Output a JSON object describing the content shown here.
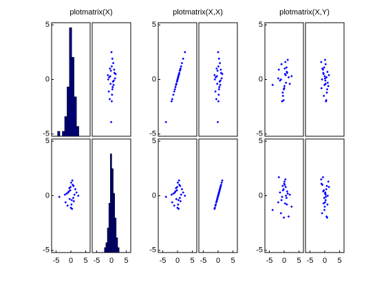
{
  "chart_data": [
    {
      "type": "scatter",
      "title": "plotmatrix(X)",
      "xlim": [
        -6.5,
        6.5
      ],
      "xticks": [
        -5,
        0,
        5
      ],
      "ylim": [
        -5.2,
        5.2
      ],
      "yticks": [
        -5,
        0,
        5
      ],
      "color": "#0000ff",
      "panels": [
        {
          "type": "histogram",
          "bins": [
            -4.5,
            -3.7,
            -2.9,
            -2.1,
            -1.3,
            -0.5,
            0.3,
            1.1,
            1.9,
            2.7
          ],
          "counts": [
            1,
            0,
            1,
            4,
            10,
            22,
            16,
            8,
            2
          ],
          "ylim": [
            0,
            23
          ],
          "color": "#000080"
        },
        {
          "type": "scatter",
          "x": [
            -0.4,
            0.7,
            0.1,
            -0.9,
            1.2,
            -0.2,
            0.5,
            0.0,
            -0.6,
            1.0,
            0.3,
            -1.1,
            0.6,
            -0.3,
            0.9,
            0.2,
            -0.8,
            -0.1,
            1.4,
            0.4,
            -0.5,
            0.8,
            -1.2,
            0.1,
            0.3
          ],
          "y": [
            0.3,
            -0.5,
            1.2,
            -1.1,
            0.1,
            0.8,
            -0.2,
            2.5,
            -1.8,
            0.6,
            -0.9,
            0.0,
            1.5,
            -0.4,
            0.9,
            -1.4,
            0.2,
            -3.9,
            0.5,
            -0.7,
            1.0,
            -0.1,
            0.4,
            -2.0,
            1.9
          ]
        },
        {
          "type": "scatter",
          "x": [
            0.3,
            -0.5,
            1.2,
            -1.1,
            0.1,
            0.8,
            -0.2,
            2.5,
            -1.8,
            0.6,
            -0.9,
            0.0,
            1.5,
            -0.4,
            0.9,
            -1.4,
            0.2,
            -3.9,
            0.5,
            -0.7,
            1.0,
            -0.1,
            0.4,
            -2.0,
            1.9
          ],
          "y": [
            -0.4,
            0.7,
            0.1,
            -0.9,
            1.2,
            -0.2,
            0.5,
            0.0,
            -0.6,
            1.0,
            0.3,
            -1.1,
            0.6,
            -0.3,
            0.9,
            0.2,
            -0.8,
            -0.1,
            1.4,
            0.4,
            -0.5,
            0.8,
            -1.2,
            0.1,
            0.3
          ]
        },
        {
          "type": "histogram",
          "bins": [
            -2.4,
            -1.9,
            -1.4,
            -0.9,
            -0.4,
            0.1,
            0.6,
            1.1,
            1.6,
            2.1,
            2.6
          ],
          "counts": [
            1,
            2,
            5,
            10,
            20,
            17,
            12,
            7,
            3,
            1
          ],
          "ylim": [
            0,
            23
          ],
          "color": "#000080"
        }
      ]
    },
    {
      "type": "scatter",
      "title": "plotmatrix(X,X)",
      "xlim": [
        -6.5,
        6.5
      ],
      "xticks": [
        -5,
        0,
        5
      ],
      "ylim": [
        -5.2,
        5.2
      ],
      "yticks": [
        -5,
        0,
        5
      ],
      "color": "#0000ff",
      "panels": [
        {
          "type": "scatter",
          "x": [
            0.3,
            -0.5,
            1.2,
            -1.1,
            0.1,
            0.8,
            -0.2,
            2.5,
            -1.8,
            0.6,
            -0.9,
            0.0,
            1.5,
            -0.4,
            0.9,
            -1.4,
            0.2,
            -3.9,
            0.5,
            -0.7,
            1.0,
            -0.1,
            0.4,
            -2.0,
            1.9
          ],
          "y": [
            0.3,
            -0.5,
            1.2,
            -1.1,
            0.1,
            0.8,
            -0.2,
            2.5,
            -1.8,
            0.6,
            -0.9,
            0.0,
            1.5,
            -0.4,
            0.9,
            -1.4,
            0.2,
            -3.9,
            0.5,
            -0.7,
            1.0,
            -0.1,
            0.4,
            -2.0,
            1.9
          ]
        },
        {
          "type": "scatter",
          "x": [
            -0.4,
            0.7,
            0.1,
            -0.9,
            1.2,
            -0.2,
            0.5,
            0.0,
            -0.6,
            1.0,
            0.3,
            -1.1,
            0.6,
            -0.3,
            0.9,
            0.2,
            -0.8,
            -0.1,
            1.4,
            0.4,
            -0.5,
            0.8,
            -1.2,
            0.1,
            0.3
          ],
          "y": [
            0.3,
            -0.5,
            1.2,
            -1.1,
            0.1,
            0.8,
            -0.2,
            2.5,
            -1.8,
            0.6,
            -0.9,
            0.0,
            1.5,
            -0.4,
            0.9,
            -1.4,
            0.2,
            -3.9,
            0.5,
            -0.7,
            1.0,
            -0.1,
            0.4,
            -2.0,
            1.9
          ]
        },
        {
          "type": "scatter",
          "x": [
            0.3,
            -0.5,
            1.2,
            -1.1,
            0.1,
            0.8,
            -0.2,
            2.5,
            -1.8,
            0.6,
            -0.9,
            0.0,
            1.5,
            -0.4,
            0.9,
            -1.4,
            0.2,
            -3.9,
            0.5,
            -0.7,
            1.0,
            -0.1,
            0.4,
            -2.0,
            1.9
          ],
          "y": [
            -0.4,
            0.7,
            0.1,
            -0.9,
            1.2,
            -0.2,
            0.5,
            0.0,
            -0.6,
            1.0,
            0.3,
            -1.1,
            0.6,
            -0.3,
            0.9,
            0.2,
            -0.8,
            -0.1,
            1.4,
            0.4,
            -0.5,
            0.8,
            -1.2,
            0.1,
            0.3
          ]
        },
        {
          "type": "scatter",
          "x": [
            -0.4,
            0.7,
            0.1,
            -0.9,
            1.2,
            -0.2,
            0.5,
            0.0,
            -0.6,
            1.0,
            0.3,
            -1.1,
            0.6,
            -0.3,
            0.9,
            0.2,
            -0.8,
            -0.1,
            1.4,
            0.4,
            -0.5,
            0.8,
            -1.2,
            0.1,
            0.3
          ],
          "y": [
            -0.4,
            0.7,
            0.1,
            -0.9,
            1.2,
            -0.2,
            0.5,
            0.0,
            -0.6,
            1.0,
            0.3,
            -1.1,
            0.6,
            -0.3,
            0.9,
            0.2,
            -0.8,
            -0.1,
            1.4,
            0.4,
            -0.5,
            0.8,
            -1.2,
            0.1,
            0.3
          ]
        }
      ]
    },
    {
      "type": "scatter",
      "title": "plotmatrix(X,Y)",
      "xlim": [
        -6.5,
        6.5
      ],
      "xticks": [
        -5,
        0,
        5
      ],
      "ylim": [
        -5.2,
        5.2
      ],
      "yticks": [
        -5,
        0,
        5
      ],
      "color": "#0000ff",
      "panels": [
        {
          "type": "scatter",
          "x": [
            0.3,
            -0.5,
            1.2,
            -1.1,
            0.1,
            0.8,
            -0.2,
            2.5,
            -1.8,
            0.6,
            -0.9,
            0.0,
            1.5,
            -0.4,
            0.9,
            -1.4,
            0.2,
            -3.9,
            0.5,
            -0.7,
            1.0,
            -0.1,
            0.4,
            -2.0,
            1.9
          ],
          "y": [
            0.5,
            -1.2,
            1.8,
            0.0,
            -0.6,
            1.1,
            -1.9,
            0.3,
            0.9,
            -0.3,
            1.4,
            -0.8,
            0.2,
            -1.5,
            0.7,
            -0.1,
            1.0,
            -0.5,
            0.4,
            -2.0,
            0.6,
            -0.9,
            1.6,
            0.1,
            -0.4
          ]
        },
        {
          "type": "scatter",
          "x": [
            -0.4,
            0.7,
            0.1,
            -0.9,
            1.2,
            -0.2,
            0.5,
            0.0,
            -0.6,
            1.0,
            0.3,
            -1.1,
            0.6,
            -0.3,
            0.9,
            0.2,
            -0.8,
            -0.1,
            1.4,
            0.4,
            -0.5,
            0.8,
            -1.2,
            0.1,
            0.3
          ],
          "y": [
            0.5,
            -1.2,
            1.8,
            0.0,
            -0.6,
            1.1,
            -1.9,
            0.3,
            0.9,
            -0.3,
            1.4,
            -0.8,
            0.2,
            -1.5,
            0.7,
            -0.1,
            1.0,
            -0.5,
            0.4,
            -2.0,
            0.6,
            -0.9,
            1.6,
            0.1,
            -0.4
          ]
        },
        {
          "type": "scatter",
          "x": [
            0.3,
            -0.5,
            1.2,
            -1.1,
            0.1,
            0.8,
            -0.2,
            2.5,
            -1.8,
            0.6,
            -0.9,
            0.0,
            1.5,
            -0.4,
            0.9,
            -1.4,
            0.2,
            -3.9,
            0.5,
            -0.7,
            1.0,
            -0.1,
            0.4,
            -2.0,
            1.9
          ],
          "y": [
            -0.7,
            0.9,
            0.2,
            -1.6,
            1.3,
            -0.2,
            0.6,
            -1.0,
            1.7,
            0.0,
            -0.4,
            1.1,
            -1.9,
            0.5,
            -0.8,
            0.3,
            1.0,
            -1.3,
            0.8,
            -0.1,
            0.4,
            -2.0,
            1.5,
            -0.6,
            0.1
          ]
        },
        {
          "type": "scatter",
          "x": [
            -0.4,
            0.7,
            0.1,
            -0.9,
            1.2,
            -0.2,
            0.5,
            0.0,
            -0.6,
            1.0,
            0.3,
            -1.1,
            0.6,
            -0.3,
            0.9,
            0.2,
            -0.8,
            -0.1,
            1.4,
            0.4,
            -0.5,
            0.8,
            -1.2,
            0.1,
            0.3
          ],
          "y": [
            -0.7,
            0.9,
            0.2,
            -1.6,
            1.3,
            -0.2,
            0.6,
            -1.0,
            1.7,
            0.0,
            -0.4,
            1.1,
            -1.9,
            0.5,
            -0.8,
            0.3,
            1.0,
            -1.3,
            0.8,
            -0.1,
            0.4,
            -2.0,
            1.5,
            -0.6,
            0.1
          ]
        }
      ]
    }
  ]
}
